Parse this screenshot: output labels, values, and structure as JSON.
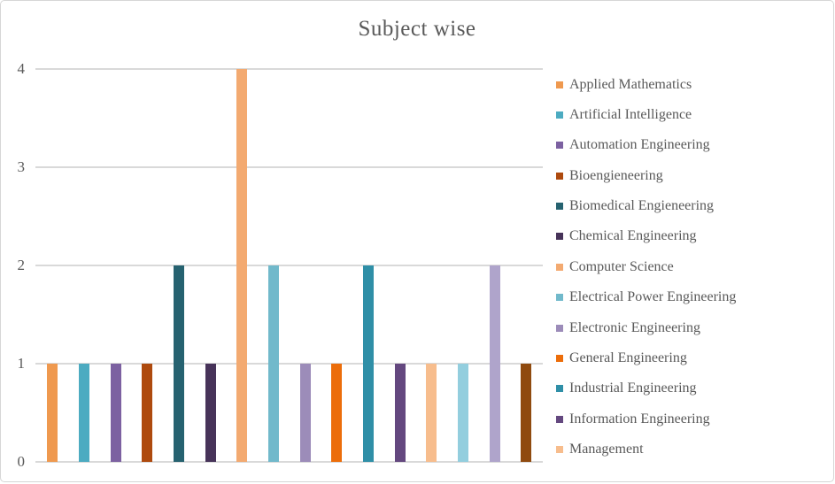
{
  "chart_data": {
    "type": "bar",
    "title": "Subject wise",
    "xlabel": "",
    "ylabel": "",
    "ylim": [
      0,
      4
    ],
    "yticks": [
      0,
      1,
      2,
      3,
      4
    ],
    "grid": true,
    "legend_position": "right",
    "legend_truncated": true,
    "text_color": "#595959",
    "gridline_color": "#d9d9d9",
    "series": [
      {
        "name": "Applied Mathematics",
        "value": 1,
        "color": "#EF994F",
        "in_legend": true
      },
      {
        "name": "Artificial Intelligence",
        "value": 1,
        "color": "#4CABC1",
        "in_legend": true
      },
      {
        "name": "Automation Engineering",
        "value": 1,
        "color": "#7C61A1",
        "in_legend": true
      },
      {
        "name": "Bioengieneering",
        "value": 1,
        "color": "#AE4A0E",
        "in_legend": true
      },
      {
        "name": "Biomedical Engieneering",
        "value": 2,
        "color": "#266270",
        "in_legend": true
      },
      {
        "name": "Chemical Engineering",
        "value": 1,
        "color": "#473359",
        "in_legend": true
      },
      {
        "name": "Computer Science",
        "value": 4,
        "color": "#F3AA71",
        "in_legend": true
      },
      {
        "name": "Electrical Power Engineering",
        "value": 2,
        "color": "#71B9CB",
        "in_legend": true
      },
      {
        "name": "Electronic Engineering",
        "value": 1,
        "color": "#9C8CB9",
        "in_legend": true
      },
      {
        "name": "General Engineering",
        "value": 1,
        "color": "#EC6D0A",
        "in_legend": true
      },
      {
        "name": "Industrial Engineering",
        "value": 2,
        "color": "#2F8FA7",
        "in_legend": true
      },
      {
        "name": "Information Engineering",
        "value": 1,
        "color": "#64487F",
        "in_legend": true
      },
      {
        "name": "Management",
        "value": 1,
        "color": "#F7BD8D",
        "in_legend": true
      },
      {
        "name": null,
        "value": 1,
        "color": "#93CEDE",
        "in_legend": false
      },
      {
        "name": null,
        "value": 2,
        "color": "#AFA4CB",
        "in_legend": false
      },
      {
        "name": null,
        "value": 1,
        "color": "#8F4A0F",
        "in_legend": false
      }
    ]
  },
  "layout_note": "Excel-style clustered column chart; legend cut off after 13 of 16 series"
}
